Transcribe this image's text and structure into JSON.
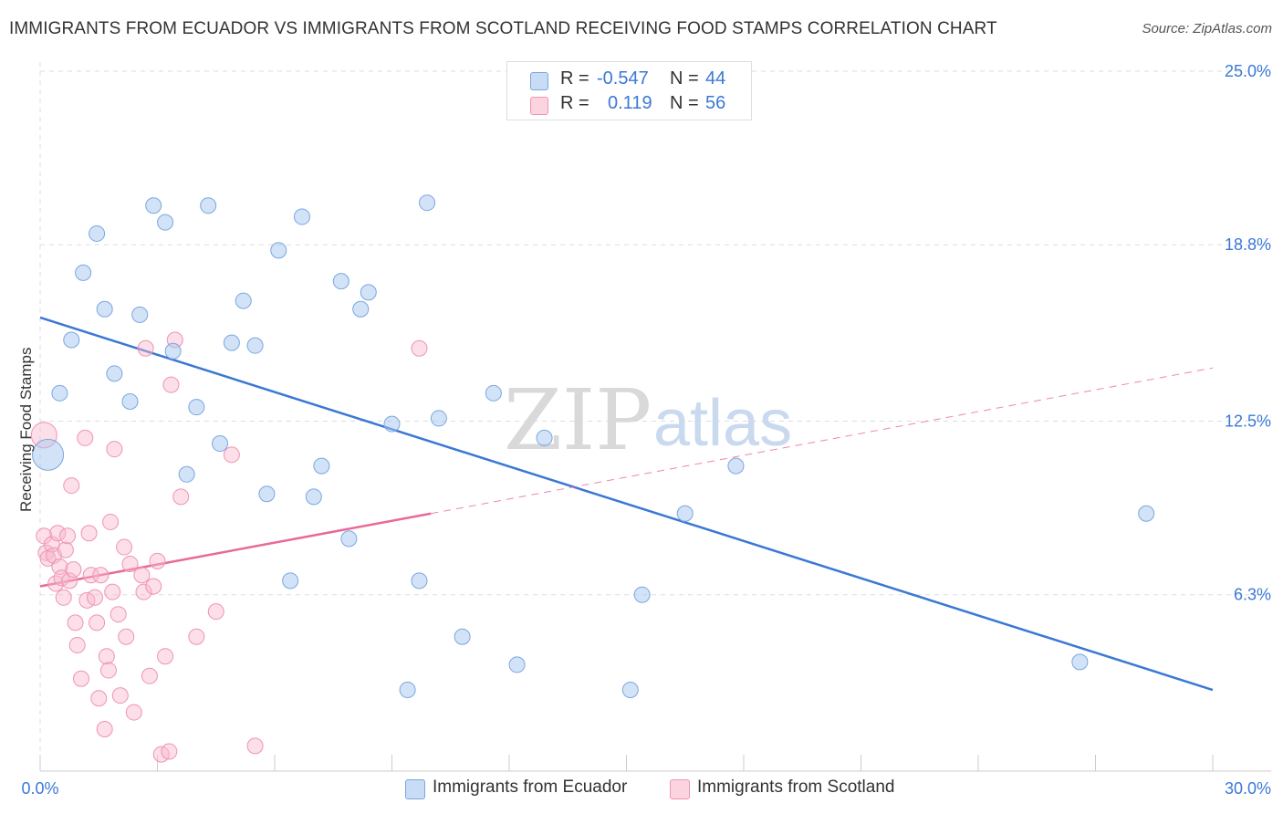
{
  "title": "IMMIGRANTS FROM ECUADOR VS IMMIGRANTS FROM SCOTLAND RECEIVING FOOD STAMPS CORRELATION CHART",
  "source": "Source: ZipAtlas.com",
  "watermark": {
    "zip": "ZIP",
    "atlas": "atlas"
  },
  "legend": {
    "rows": [
      {
        "r_label": "R =",
        "r_value": "-0.547",
        "n_label": "N =",
        "n_value": "44",
        "color": "#a8c8f0"
      },
      {
        "r_label": "R =",
        "r_value": "0.119",
        "n_label": "N =",
        "n_value": "56",
        "color": "#f8b8cc"
      }
    ]
  },
  "bottom_legend": [
    {
      "label": "Immigrants from Ecuador",
      "color": "#a8c8f0"
    },
    {
      "label": "Immigrants from Scotland",
      "color": "#f8b8cc"
    }
  ],
  "colors": {
    "ecuador_fill": "#a8c8f0",
    "ecuador_line": "#3a78d4",
    "scotland_fill": "#f8b8cc",
    "scotland_line": "#e8699a",
    "grid": "#dddddd",
    "axis_text": "#3b78d8"
  },
  "chart_data": {
    "type": "scatter",
    "title": "IMMIGRANTS FROM ECUADOR VS IMMIGRANTS FROM SCOTLAND RECEIVING FOOD STAMPS CORRELATION CHART",
    "xlabel": "",
    "ylabel": "Receiving Food Stamps",
    "xlim": [
      0,
      30
    ],
    "ylim": [
      0,
      25
    ],
    "x_tick_labels": [
      "0.0%",
      "30.0%"
    ],
    "y_ticks": [
      6.3,
      12.5,
      18.8,
      25.0
    ],
    "y_tick_labels": [
      "6.3%",
      "12.5%",
      "18.8%",
      "25.0%"
    ],
    "grid": true,
    "legend_position": "top-center",
    "series": [
      {
        "name": "Immigrants from Ecuador",
        "r": -0.547,
        "n": 44,
        "trend": {
          "x": [
            0,
            30
          ],
          "y": [
            16.2,
            2.9
          ]
        },
        "points": [
          [
            0.2,
            11.3
          ],
          [
            0.5,
            13.5
          ],
          [
            0.8,
            15.4
          ],
          [
            1.1,
            17.8
          ],
          [
            1.45,
            19.2
          ],
          [
            1.65,
            16.5
          ],
          [
            1.9,
            14.2
          ],
          [
            2.3,
            13.2
          ],
          [
            2.55,
            16.3
          ],
          [
            2.9,
            20.2
          ],
          [
            3.2,
            19.6
          ],
          [
            3.4,
            15.0
          ],
          [
            3.75,
            10.6
          ],
          [
            4.0,
            13.0
          ],
          [
            4.3,
            20.2
          ],
          [
            4.6,
            11.7
          ],
          [
            4.9,
            15.3
          ],
          [
            5.2,
            16.8
          ],
          [
            5.5,
            15.2
          ],
          [
            5.8,
            9.9
          ],
          [
            6.1,
            18.6
          ],
          [
            6.4,
            6.8
          ],
          [
            6.7,
            19.8
          ],
          [
            7.0,
            9.8
          ],
          [
            7.2,
            10.9
          ],
          [
            7.7,
            17.5
          ],
          [
            7.9,
            8.3
          ],
          [
            8.2,
            16.5
          ],
          [
            8.4,
            17.1
          ],
          [
            9.0,
            12.4
          ],
          [
            9.4,
            2.9
          ],
          [
            9.7,
            6.8
          ],
          [
            9.9,
            20.3
          ],
          [
            10.2,
            12.6
          ],
          [
            10.8,
            4.8
          ],
          [
            11.6,
            13.5
          ],
          [
            12.2,
            3.8
          ],
          [
            12.9,
            11.9
          ],
          [
            15.1,
            2.9
          ],
          [
            15.4,
            6.3
          ],
          [
            16.5,
            9.2
          ],
          [
            17.8,
            10.9
          ],
          [
            26.6,
            3.9
          ],
          [
            28.3,
            9.2
          ]
        ]
      },
      {
        "name": "Immigrants from Scotland",
        "r": 0.119,
        "n": 56,
        "trend": {
          "x": [
            0,
            30
          ],
          "y": [
            6.6,
            14.4
          ]
        },
        "trend_solid_until_x": 10,
        "points": [
          [
            0.1,
            12.0
          ],
          [
            0.1,
            8.4
          ],
          [
            0.15,
            7.8
          ],
          [
            0.2,
            7.6
          ],
          [
            0.3,
            8.1
          ],
          [
            0.35,
            7.7
          ],
          [
            0.4,
            6.7
          ],
          [
            0.45,
            8.5
          ],
          [
            0.5,
            7.3
          ],
          [
            0.55,
            6.9
          ],
          [
            0.6,
            6.2
          ],
          [
            0.65,
            7.9
          ],
          [
            0.7,
            8.4
          ],
          [
            0.75,
            6.8
          ],
          [
            0.8,
            10.2
          ],
          [
            0.85,
            7.2
          ],
          [
            0.9,
            5.3
          ],
          [
            0.95,
            4.5
          ],
          [
            1.05,
            3.3
          ],
          [
            1.15,
            11.9
          ],
          [
            1.2,
            6.1
          ],
          [
            1.25,
            8.5
          ],
          [
            1.3,
            7.0
          ],
          [
            1.4,
            6.2
          ],
          [
            1.45,
            5.3
          ],
          [
            1.5,
            2.6
          ],
          [
            1.55,
            7.0
          ],
          [
            1.65,
            1.5
          ],
          [
            1.7,
            4.1
          ],
          [
            1.75,
            3.6
          ],
          [
            1.8,
            8.9
          ],
          [
            1.85,
            6.4
          ],
          [
            1.9,
            11.5
          ],
          [
            2.0,
            5.6
          ],
          [
            2.05,
            2.7
          ],
          [
            2.15,
            8.0
          ],
          [
            2.2,
            4.8
          ],
          [
            2.3,
            7.4
          ],
          [
            2.4,
            2.1
          ],
          [
            2.6,
            7.0
          ],
          [
            2.65,
            6.4
          ],
          [
            2.7,
            15.1
          ],
          [
            2.8,
            3.4
          ],
          [
            2.9,
            6.6
          ],
          [
            3.0,
            7.5
          ],
          [
            3.1,
            0.6
          ],
          [
            3.2,
            4.1
          ],
          [
            3.3,
            0.7
          ],
          [
            3.35,
            13.8
          ],
          [
            3.45,
            15.4
          ],
          [
            3.6,
            9.8
          ],
          [
            4.0,
            4.8
          ],
          [
            4.5,
            5.7
          ],
          [
            4.9,
            11.3
          ],
          [
            5.5,
            0.9
          ],
          [
            9.7,
            15.1
          ]
        ]
      }
    ]
  }
}
